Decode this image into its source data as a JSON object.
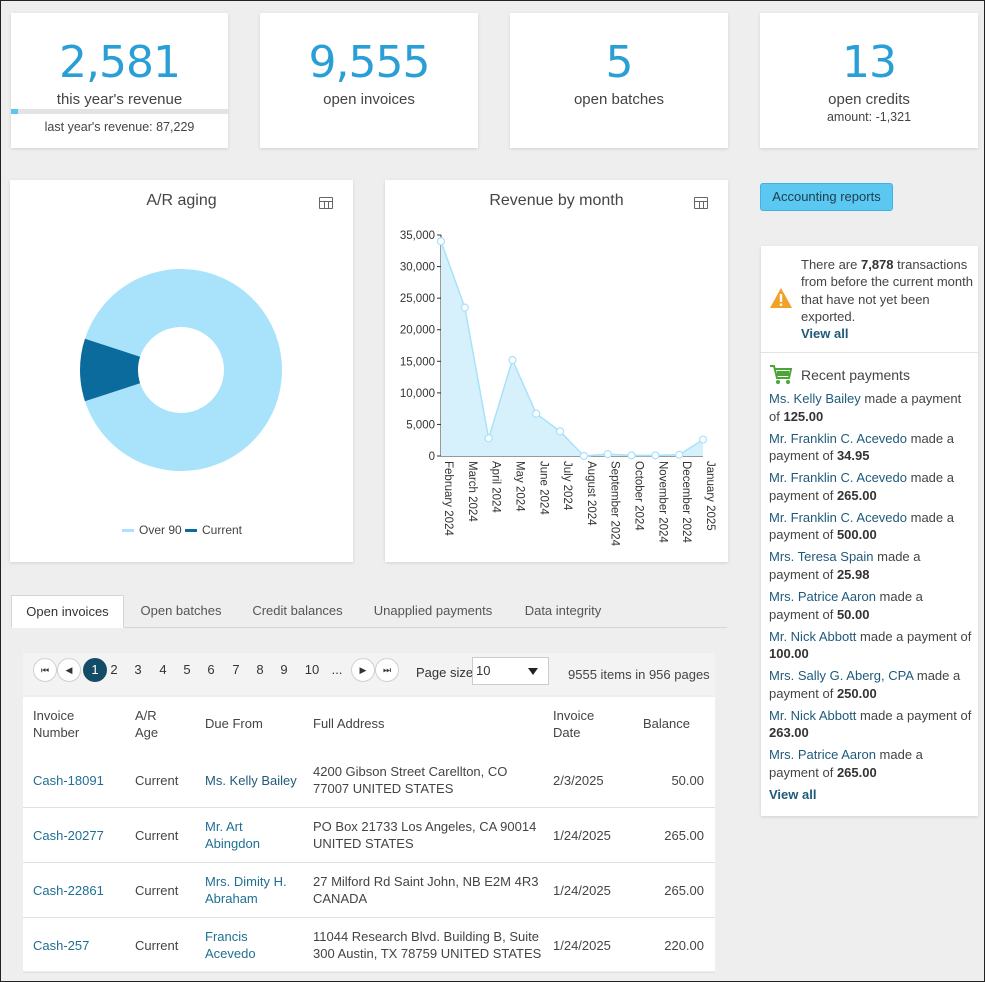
{
  "stats": [
    {
      "value": "2,581",
      "label": "this year's revenue",
      "sub": "last year's revenue: 87,229",
      "progress": 0.03
    },
    {
      "value": "9,555",
      "label": "open invoices"
    },
    {
      "value": "5",
      "label": "open batches"
    },
    {
      "value": "13",
      "label": "open credits",
      "sub": "amount: -1,321"
    }
  ],
  "ar_aging": {
    "title": "A/R aging",
    "legend": [
      "Over 90",
      "Current"
    ],
    "colors": {
      "over90": "#a8e2fb",
      "current": "#0a6b9c"
    }
  },
  "revenue_chart": {
    "title": "Revenue by month"
  },
  "chart_data": [
    {
      "type": "pie",
      "title": "A/R aging",
      "labels": [
        "Over 90",
        "Current"
      ],
      "values": [
        90,
        10
      ],
      "donut": true,
      "legend": "bottom"
    },
    {
      "type": "area",
      "title": "Revenue by month",
      "categories": [
        "February 2024",
        "March 2024",
        "April 2024",
        "May 2024",
        "June 2024",
        "July 2024",
        "August 2024",
        "September 2024",
        "October 2024",
        "November 2024",
        "December 2024",
        "January 2025"
      ],
      "values": [
        34000,
        23500,
        2800,
        15200,
        6700,
        3900,
        0,
        300,
        100,
        100,
        200,
        2600
      ],
      "ylim": [
        0,
        35000
      ],
      "yticks": [
        "0",
        "5,000",
        "10,000",
        "15,000",
        "20,000",
        "25,000",
        "30,000",
        "35,000"
      ],
      "yticks_values": [
        0,
        5000,
        10000,
        15000,
        20000,
        25000,
        30000,
        35000
      ],
      "grid": false
    }
  ],
  "accounting_reports_label": "Accounting reports",
  "notice": {
    "pre": "There are ",
    "count": "7,878",
    "post": " transactions from before the current month that have not yet been exported.",
    "link": "View all"
  },
  "recent_payments": {
    "title": "Recent payments",
    "made_text": " made a payment of ",
    "items": [
      {
        "name": "Ms. Kelly Bailey",
        "amount": "125.00"
      },
      {
        "name": "Mr. Franklin C. Acevedo",
        "amount": "34.95"
      },
      {
        "name": "Mr. Franklin C. Acevedo",
        "amount": "265.00"
      },
      {
        "name": "Mr. Franklin C. Acevedo",
        "amount": "500.00"
      },
      {
        "name": "Mrs. Teresa Spain",
        "amount": "25.98"
      },
      {
        "name": "Mrs. Patrice Aaron",
        "amount": "50.00"
      },
      {
        "name": "Mr. Nick Abbott",
        "amount": "100.00"
      },
      {
        "name": "Mrs. Sally G. Aberg, CPA",
        "amount": "250.00"
      },
      {
        "name": "Mr. Nick Abbott",
        "amount": "263.00"
      },
      {
        "name": "Mrs. Patrice Aaron",
        "amount": "265.00"
      }
    ],
    "view_all": "View all"
  },
  "tabs": [
    "Open invoices",
    "Open batches",
    "Credit balances",
    "Unapplied payments",
    "Data integrity"
  ],
  "pager": {
    "pages": [
      "1",
      "2",
      "3",
      "4",
      "5",
      "6",
      "7",
      "8",
      "9",
      "10",
      "..."
    ],
    "current": "1",
    "page_size_label": "Page size:",
    "page_size": "10",
    "items_info_pre": "9555 items in ",
    "items_info_pages": "956",
    "items_info_post": " pages"
  },
  "table": {
    "headers": {
      "invoice_number": [
        "Invoice",
        "Number"
      ],
      "ar_age": [
        "A/R",
        "Age"
      ],
      "due_from": "Due From",
      "full_address": "Full Address",
      "invoice_date": [
        "Invoice",
        "Date"
      ],
      "balance": "Balance"
    },
    "rows": [
      {
        "invoice": "Cash-18091",
        "age": "Current",
        "due_from": [
          "Ms. Kelly Bailey"
        ],
        "address": [
          "4200 Gibson Street Carellton, CO",
          "77007 UNITED STATES"
        ],
        "date": "2/3/2025",
        "balance": "50.00"
      },
      {
        "invoice": "Cash-20277",
        "age": "Current",
        "due_from": [
          "Mr. Art",
          "Abingdon"
        ],
        "address": [
          "PO Box 21733 Los Angeles, CA 90014",
          "UNITED STATES"
        ],
        "date": "1/24/2025",
        "balance": "265.00"
      },
      {
        "invoice": "Cash-22861",
        "age": "Current",
        "due_from": [
          "Mrs. Dimity H.",
          "Abraham"
        ],
        "address": [
          "27 Milford Rd Saint John, NB E2M 4R3",
          "CANADA"
        ],
        "date": "1/24/2025",
        "balance": "265.00"
      },
      {
        "invoice": "Cash-257",
        "age": "Current",
        "due_from": [
          "Francis",
          "Acevedo"
        ],
        "address": [
          "11044 Research Blvd. Building B, Suite",
          "300 Austin, TX 78759 UNITED STATES"
        ],
        "date": "1/24/2025",
        "balance": "220.00"
      }
    ]
  }
}
